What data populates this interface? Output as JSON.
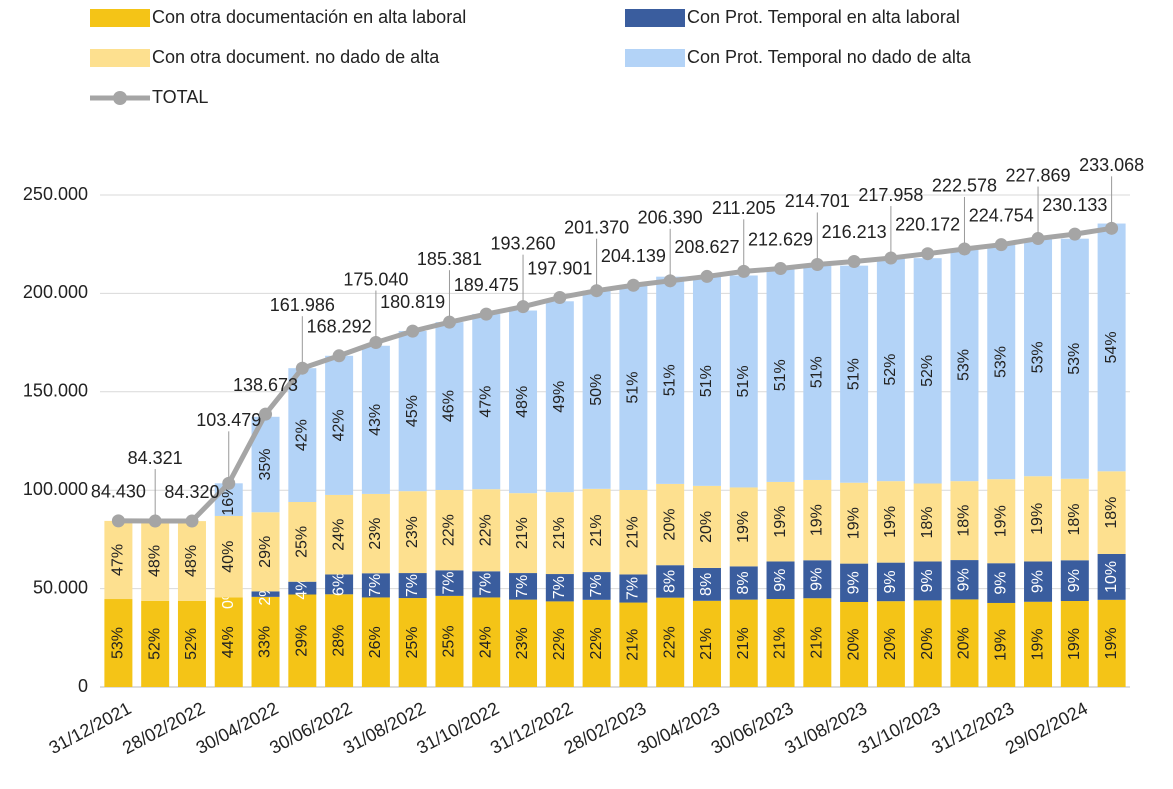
{
  "chart_data": {
    "type": "stacked_bar_line",
    "categories": [
      "31/12/2021",
      null,
      "28/02/2022",
      null,
      "30/04/2022",
      null,
      "30/06/2022",
      null,
      "31/08/2022",
      null,
      "31/10/2022",
      null,
      "31/12/2022",
      null,
      "28/02/2023",
      null,
      "30/04/2023",
      null,
      "30/06/2023",
      null,
      "31/08/2023",
      null,
      "31/10/2023",
      null,
      "31/12/2023",
      null,
      "29/02/2024",
      null
    ],
    "series": [
      {
        "name": "Con otra documentación en alta laboral",
        "color": "#f4c417",
        "values": [
          44700,
          43800,
          43800,
          45500,
          45800,
          47000,
          47100,
          45500,
          45200,
          46300,
          45500,
          44400,
          43500,
          44300,
          42900,
          45400,
          43800,
          44400,
          44700,
          45100,
          43200,
          43600,
          44000,
          44500,
          42700,
          43300,
          43700,
          44300
        ],
        "labels": [
          "53%",
          "52%",
          "52%",
          "44%",
          "33%",
          "29%",
          "28%",
          "26%",
          "25%",
          "25%",
          "24%",
          "23%",
          "22%",
          "22%",
          "21%",
          "22%",
          "21%",
          "21%",
          "21%",
          "21%",
          "20%",
          "20%",
          "20%",
          "20%",
          "19%",
          "19%",
          "19%",
          "19%"
        ]
      },
      {
        "name": "Con Prot. Temporal en alta laboral",
        "color": "#3a5d9e",
        "values": [
          0,
          0,
          0,
          0,
          2800,
          6500,
          10100,
          12300,
          12700,
          13000,
          13300,
          13500,
          13900,
          14100,
          14300,
          16500,
          16700,
          16900,
          19100,
          19300,
          19500,
          19600,
          19800,
          20000,
          20200,
          20500,
          20700,
          23300
        ],
        "labels": [
          null,
          null,
          null,
          "0%",
          "2%",
          "4%",
          "6%",
          "7%",
          "7%",
          "7%",
          "7%",
          "7%",
          "7%",
          "7%",
          "7%",
          "8%",
          "8%",
          "8%",
          "9%",
          "9%",
          "9%",
          "9%",
          "9%",
          "9%",
          "9%",
          "9%",
          "9%",
          "10%"
        ]
      },
      {
        "name": "Con otra document. no dado de alta",
        "color": "#fde08f",
        "values": [
          39700,
          40500,
          40500,
          41400,
          40200,
          40500,
          40400,
          40300,
          41600,
          40800,
          41700,
          40600,
          41600,
          42300,
          42900,
          41300,
          41700,
          40100,
          40400,
          40800,
          41100,
          41400,
          39600,
          40100,
          42700,
          43300,
          41400,
          42000
        ],
        "labels": [
          "47%",
          "48%",
          "48%",
          "40%",
          "29%",
          "25%",
          "24%",
          "23%",
          "23%",
          "22%",
          "22%",
          "21%",
          "21%",
          "21%",
          "21%",
          "20%",
          "20%",
          "19%",
          "19%",
          "19%",
          "19%",
          "19%",
          "18%",
          "18%",
          "19%",
          "19%",
          "18%",
          "18%"
        ]
      },
      {
        "name": "Con Prot. Temporal no dado de alta",
        "color": "#b3d3f7",
        "values": [
          0,
          0,
          0,
          16600,
          48500,
          68000,
          70700,
          75300,
          81400,
          85300,
          89000,
          92800,
          97000,
          100700,
          104100,
          105300,
          106400,
          107700,
          108400,
          109500,
          110300,
          113300,
          114500,
          118000,
          119100,
          120800,
          122000,
          125900
        ],
        "labels": [
          null,
          null,
          null,
          "16%",
          "35%",
          "42%",
          "42%",
          "43%",
          "45%",
          "46%",
          "47%",
          "48%",
          "49%",
          "50%",
          "51%",
          "51%",
          "51%",
          "51%",
          "51%",
          "51%",
          "51%",
          "52%",
          "52%",
          "53%",
          "53%",
          "53%",
          "53%",
          "54%"
        ]
      }
    ],
    "total": {
      "name": "TOTAL",
      "color": "#a5a5a5",
      "values": [
        84430,
        84321,
        84320,
        103479,
        138673,
        161986,
        168292,
        175040,
        180819,
        185381,
        189475,
        193260,
        197901,
        201370,
        204139,
        206390,
        208627,
        211205,
        212629,
        214701,
        216213,
        217958,
        220172,
        222578,
        224754,
        227869,
        230133,
        233068
      ],
      "value_labels": [
        "84.430",
        "84.321",
        "84.320",
        "103.479",
        "138.673",
        "161.986",
        "168.292",
        "175.040",
        "180.819",
        "185.381",
        "189.475",
        "193.260",
        "197.901",
        "201.370",
        "204.139",
        "206.390",
        "208.627",
        "211.205",
        "212.629",
        "214.701",
        "216.213",
        "217.958",
        "220.172",
        "222.578",
        "224.754",
        "227.869",
        "230.133",
        "233.068"
      ]
    },
    "ylim": [
      0,
      250000
    ],
    "yticks": [
      0,
      {
        "value": 50000,
        "label": "50.000"
      },
      {
        "value": 100000,
        "label": "100.000"
      },
      {
        "value": 150000,
        "label": "150.000"
      },
      {
        "value": 200000,
        "label": "200.000"
      },
      {
        "value": 250000,
        "label": "250.000"
      }
    ],
    "grid": true
  }
}
